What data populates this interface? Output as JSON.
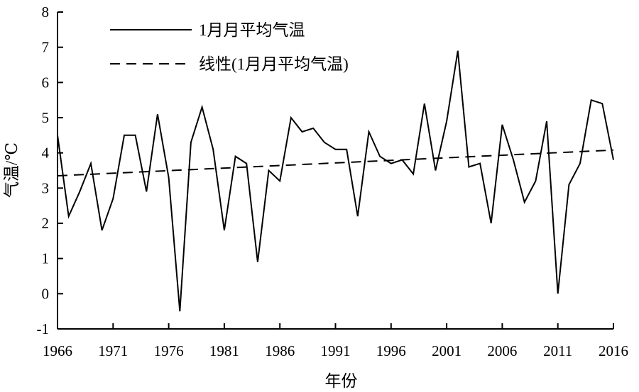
{
  "chart_data": {
    "type": "line",
    "title": "",
    "xlabel": "年份",
    "ylabel": "气温/℃",
    "xlim": [
      1966,
      2016
    ],
    "ylim": [
      -1,
      8
    ],
    "x_ticks": [
      1966,
      1971,
      1976,
      1981,
      1986,
      1991,
      1996,
      2001,
      2006,
      2011,
      2016
    ],
    "y_ticks": [
      -1,
      0,
      1,
      2,
      3,
      4,
      5,
      6,
      7,
      8
    ],
    "grid": false,
    "legend_position": "top-left",
    "series": [
      {
        "name": "1月月平均气温",
        "style": "solid",
        "color": "#000000",
        "x": [
          1966,
          1967,
          1968,
          1969,
          1970,
          1971,
          1972,
          1973,
          1974,
          1975,
          1976,
          1977,
          1978,
          1979,
          1980,
          1981,
          1982,
          1983,
          1984,
          1985,
          1986,
          1987,
          1988,
          1989,
          1990,
          1991,
          1992,
          1993,
          1994,
          1995,
          1996,
          1997,
          1998,
          1999,
          2000,
          2001,
          2002,
          2003,
          2004,
          2005,
          2006,
          2007,
          2008,
          2009,
          2010,
          2011,
          2012,
          2013,
          2014,
          2015,
          2016
        ],
        "values": [
          4.5,
          2.2,
          2.9,
          3.7,
          1.8,
          2.7,
          4.5,
          4.5,
          2.9,
          5.1,
          3.3,
          -0.5,
          4.3,
          5.3,
          4.1,
          1.8,
          3.9,
          3.7,
          0.9,
          3.5,
          3.2,
          5.0,
          4.6,
          4.7,
          4.3,
          4.1,
          4.1,
          2.2,
          4.6,
          3.9,
          3.7,
          3.8,
          3.4,
          5.4,
          3.5,
          4.9,
          6.9,
          3.6,
          3.7,
          2.0,
          4.8,
          3.8,
          2.6,
          3.2,
          4.9,
          0.0,
          3.1,
          3.7,
          5.5,
          5.4,
          3.8
        ]
      },
      {
        "name": "线性(1月月平均气温)",
        "style": "dashed",
        "color": "#000000",
        "x": [
          1966,
          2016
        ],
        "values": [
          3.35,
          4.08
        ]
      }
    ]
  }
}
